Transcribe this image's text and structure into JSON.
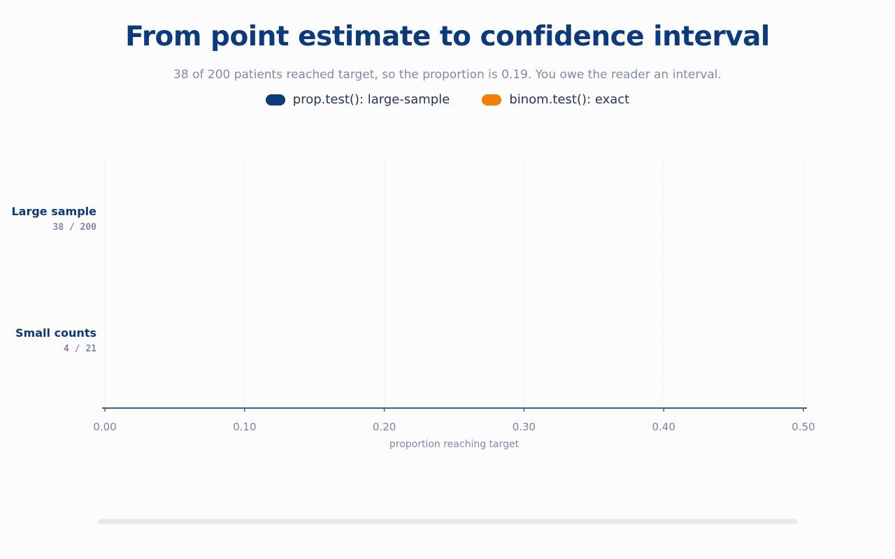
{
  "title": "From point estimate to confidence interval",
  "subtitle": "38 of 200 patients reached target, so the proportion is 0.19. You owe the reader an interval.",
  "legend": [
    {
      "label": "prop.test(): large-sample",
      "color": "#0c3a7a"
    },
    {
      "label": "binom.test(): exact",
      "color": "#f08000"
    }
  ],
  "chart_data": {
    "type": "interval",
    "title": "From point estimate to confidence interval",
    "xlabel": "proportion reaching target",
    "ylabel": "",
    "xlim": [
      0.0,
      0.5
    ],
    "x_ticks": [
      "0.00",
      "0.10",
      "0.20",
      "0.30",
      "0.40",
      "0.50"
    ],
    "x_tick_values": [
      0.0,
      0.1,
      0.2,
      0.3,
      0.4,
      0.5
    ],
    "grid": true,
    "legend_position": "top-center",
    "rows": [
      {
        "label": "Large sample",
        "counts": "38 / 200"
      },
      {
        "label": "Small counts",
        "counts": "4 / 21"
      }
    ],
    "series": [
      {
        "name": "prop.test(): large-sample",
        "values": []
      },
      {
        "name": "binom.test(): exact",
        "values": []
      }
    ]
  },
  "colors": {
    "title": "#0c3a7a",
    "axis": "#3d5f8f",
    "grid": "#ebebef",
    "track": "#e6e9f0"
  }
}
